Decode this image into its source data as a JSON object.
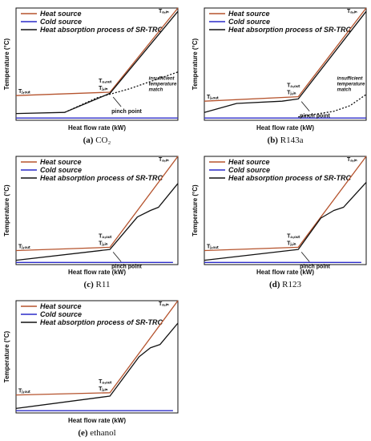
{
  "chart_data": [
    {
      "type": "line",
      "caption_letter": "(a)",
      "caption_name": "CO₂",
      "legend": [
        "Heat source",
        "Cold source",
        "Heat absorption process of SR-TRC"
      ],
      "xlabel": "Heat flow rate (kW)",
      "ylabel": "Temperature (°C)",
      "annotations": {
        "pinch": "pinch point",
        "note": [
          "insufficient",
          "temperature",
          "match"
        ]
      },
      "point_labels": {
        "ain": "Tₐ,ᵢₙ",
        "aout": "Tₐ,ₒᵤₜ",
        "jin": "Tⱼ,ᵢₙ",
        "jout": "Tⱼ,ₒᵤₜ"
      },
      "series": [
        {
          "color": "#b5532d",
          "values": [
            [
              0,
              0.22
            ],
            [
              0.58,
              0.25
            ],
            [
              1.0,
              1.0
            ]
          ]
        },
        {
          "color": "#2c2cc8",
          "values": [
            [
              0,
              0.02
            ],
            [
              1.0,
              0.02
            ]
          ]
        },
        {
          "color": "#111111",
          "values": [
            [
              0,
              0.06
            ],
            [
              0.3,
              0.07
            ],
            [
              0.58,
              0.24
            ],
            [
              1.0,
              0.97
            ]
          ]
        },
        {
          "color": "#111111",
          "values": [
            [
              0.3,
              0.07
            ],
            [
              0.5,
              0.2
            ],
            [
              0.7,
              0.28
            ],
            [
              1.0,
              0.43
            ]
          ]
        }
      ]
    },
    {
      "type": "line",
      "caption_letter": "(b)",
      "caption_name": "R143a",
      "legend": [
        "Heat source",
        "Cold source",
        "Heat absorption process of SR-TRC"
      ],
      "xlabel": "Heat flow rate (kW)",
      "ylabel": "Temperature (°C)",
      "annotations": {
        "pinch": "pinch point",
        "note": [
          "insufficient",
          "temperature",
          "match"
        ]
      },
      "point_labels": {
        "ain": "Tₐ,ᵢₙ",
        "aout": "Tₐ,ₒᵤₜ",
        "jin": "Tⱼ,ᵢₙ",
        "jout": "Tⱼ,ₒᵤₜ"
      },
      "series": [
        {
          "color": "#b5532d",
          "values": [
            [
              0,
              0.17
            ],
            [
              0.58,
              0.21
            ],
            [
              1.0,
              1.0
            ]
          ]
        },
        {
          "color": "#2c2cc8",
          "values": [
            [
              0,
              0.02
            ],
            [
              1.0,
              0.02
            ]
          ]
        },
        {
          "color": "#111111",
          "values": [
            [
              0,
              0.07
            ],
            [
              0.2,
              0.15
            ],
            [
              0.48,
              0.17
            ],
            [
              0.58,
              0.19
            ],
            [
              1.0,
              0.97
            ]
          ]
        },
        {
          "color": "#111111",
          "values": [
            [
              0.58,
              0.03
            ],
            [
              0.8,
              0.08
            ],
            [
              0.9,
              0.13
            ],
            [
              1.0,
              0.23
            ]
          ]
        }
      ]
    },
    {
      "type": "line",
      "caption_letter": "(c)",
      "caption_name": "R11",
      "legend": [
        "Heat source",
        "Cold source",
        "Heat absorption process of SR-TRC"
      ],
      "xlabel": "Heat flow rate (kW)",
      "ylabel": "Temperature (°C)",
      "annotations": {
        "pinch": "pinch point"
      },
      "point_labels": {
        "ain": "Tₐ,ᵢₙ",
        "aout": "Tₐ,ₒᵤₜ",
        "jin": "Tⱼ,ᵢₙ",
        "jout": "Tⱼ,ₒᵤₜ"
      },
      "series": [
        {
          "color": "#b5532d",
          "values": [
            [
              0,
              0.13
            ],
            [
              0.58,
              0.16
            ],
            [
              1.0,
              1.0
            ]
          ]
        },
        {
          "color": "#2c2cc8",
          "values": [
            [
              0,
              0.02
            ],
            [
              0.97,
              0.02
            ]
          ]
        },
        {
          "color": "#111111",
          "values": [
            [
              0,
              0.04
            ],
            [
              0.58,
              0.14
            ],
            [
              0.75,
              0.44
            ],
            [
              0.83,
              0.5
            ],
            [
              0.88,
              0.53
            ],
            [
              1.0,
              0.75
            ]
          ]
        }
      ]
    },
    {
      "type": "line",
      "caption_letter": "(d)",
      "caption_name": "R123",
      "legend": [
        "Heat source",
        "Cold source",
        "Heat absorption process of SR-TRC"
      ],
      "xlabel": "Heat flow rate (kW)",
      "ylabel": "Temperature (°C)",
      "annotations": {
        "pinch": "pinch point"
      },
      "point_labels": {
        "ain": "Tₐ,ᵢₙ",
        "aout": "Tₐ,ₒᵤₜ",
        "jin": "Tⱼ,ᵢₙ",
        "jout": "Tⱼ,ₒᵤₜ"
      },
      "series": [
        {
          "color": "#b5532d",
          "values": [
            [
              0,
              0.13
            ],
            [
              0.58,
              0.16
            ],
            [
              1.0,
              1.0
            ]
          ]
        },
        {
          "color": "#2c2cc8",
          "values": [
            [
              0,
              0.02
            ],
            [
              0.97,
              0.02
            ]
          ]
        },
        {
          "color": "#111111",
          "values": [
            [
              0,
              0.04
            ],
            [
              0.58,
              0.14
            ],
            [
              0.72,
              0.43
            ],
            [
              0.8,
              0.5
            ],
            [
              0.86,
              0.53
            ],
            [
              1.0,
              0.76
            ]
          ]
        }
      ]
    },
    {
      "type": "line",
      "caption_letter": "(e)",
      "caption_name": "ethanol",
      "legend": [
        "Heat source",
        "Cold source",
        "Heat absorption process of SR-TRC"
      ],
      "xlabel": "Heat flow rate (kW)",
      "ylabel": "Temperature (°C)",
      "annotations": {},
      "point_labels": {
        "ain": "Tₐ,ᵢₙ",
        "aout": "Tₐ,ₒᵤₜ",
        "jin": "Tⱼ,ᵢₙ",
        "jout": "Tⱼ,ₒᵤₜ"
      },
      "series": [
        {
          "color": "#b5532d",
          "values": [
            [
              0,
              0.16
            ],
            [
              0.58,
              0.18
            ],
            [
              1.0,
              1.0
            ]
          ]
        },
        {
          "color": "#2c2cc8",
          "values": [
            [
              0,
              0.02
            ],
            [
              0.97,
              0.02
            ]
          ]
        },
        {
          "color": "#111111",
          "values": [
            [
              0,
              0.04
            ],
            [
              0.58,
              0.15
            ],
            [
              0.76,
              0.5
            ],
            [
              0.83,
              0.58
            ],
            [
              0.89,
              0.61
            ],
            [
              1.0,
              0.8
            ]
          ]
        }
      ]
    }
  ]
}
